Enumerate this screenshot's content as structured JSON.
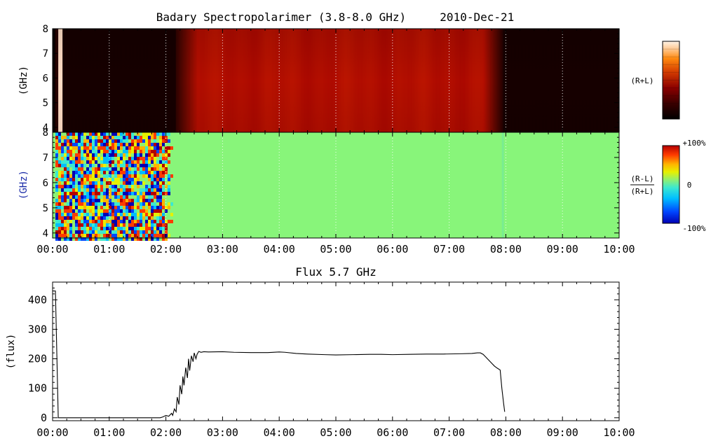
{
  "chart_data": [
    {
      "type": "heatmap",
      "title": "Badary Spectropolarimer (3.8-8.0 GHz)     2010-Dec-21",
      "ylabel": "(GHz)",
      "side_label": "(R+L)",
      "y_ticks": [
        "4",
        "5",
        "6",
        "7",
        "8"
      ],
      "ylim": [
        3.8,
        8.0
      ],
      "x_ticks": [
        "00:00",
        "01:00",
        "02:00",
        "03:00",
        "04:00",
        "05:00",
        "06:00",
        "07:00",
        "08:00",
        "09:00",
        "10:00"
      ],
      "xlim_hours": [
        0,
        10
      ],
      "colorbar": "black-red-orange-white, no labels",
      "segments": [
        {
          "t0": 0.0,
          "t1": 0.04,
          "level": "black"
        },
        {
          "t0": 0.04,
          "t1": 0.08,
          "level": "very-dark"
        },
        {
          "t0": 0.08,
          "t1": 0.17,
          "level": "pale/white"
        },
        {
          "t0": 0.17,
          "t1": 2.15,
          "level": "black"
        },
        {
          "t0": 2.15,
          "t1": 2.55,
          "level": "ramp to red"
        },
        {
          "t0": 2.55,
          "t1": 7.6,
          "level": "red"
        },
        {
          "t0": 7.6,
          "t1": 7.95,
          "level": "ramp to black"
        },
        {
          "t0": 7.95,
          "t1": 10.0,
          "level": "black"
        }
      ]
    },
    {
      "type": "heatmap",
      "ylabel": "(GHz)",
      "side_label_num": "(R-L)",
      "side_label_den": "(R+L)",
      "y_ticks": [
        "4",
        "5",
        "6",
        "7",
        "8"
      ],
      "ylim": [
        3.8,
        8.0
      ],
      "x_ticks": [
        "00:00",
        "01:00",
        "02:00",
        "03:00",
        "04:00",
        "05:00",
        "06:00",
        "07:00",
        "08:00",
        "09:00",
        "10:00"
      ],
      "xlim_hours": [
        0,
        10
      ],
      "colorbar_labels": [
        "+100%",
        "0",
        "-100%"
      ],
      "noise_interval_hours": [
        0.05,
        1.95
      ],
      "noise_fade_end_hours": 2.1,
      "background": "0% (green)"
    },
    {
      "type": "line",
      "title": "Flux 5.7 GHz",
      "ylabel": "(flux)",
      "y_ticks": [
        "0",
        "100",
        "200",
        "300",
        "400"
      ],
      "ylim": [
        -10,
        460
      ],
      "x_ticks": [
        "00:00",
        "01:00",
        "02:00",
        "03:00",
        "04:00",
        "05:00",
        "06:00",
        "07:00",
        "08:00",
        "09:00",
        "10:00"
      ],
      "xlim_hours": [
        0,
        10
      ],
      "series": [
        {
          "x_hours": [
            0.0,
            0.05,
            0.05,
            0.1,
            0.1,
            1.9,
            1.95,
            2.0,
            2.05,
            2.1,
            2.12,
            2.15,
            2.18,
            2.2,
            2.23,
            2.25,
            2.28,
            2.3,
            2.32,
            2.35,
            2.38,
            2.4,
            2.42,
            2.45,
            2.48,
            2.5,
            2.53,
            2.55,
            2.58,
            2.62,
            2.67,
            2.75,
            3.0,
            3.2,
            3.5,
            3.8,
            4.0,
            4.1,
            4.3,
            4.5,
            4.8,
            5.0,
            5.3,
            5.6,
            5.8,
            6.0,
            6.3,
            6.6,
            6.9,
            7.2,
            7.4,
            7.5,
            7.55,
            7.6,
            7.65,
            7.7,
            7.75,
            7.8,
            7.85,
            7.9,
            7.93,
            7.96,
            7.98
          ],
          "y": [
            430,
            430,
            430,
            0,
            0,
            0,
            3,
            8,
            5,
            15,
            8,
            30,
            20,
            70,
            45,
            110,
            80,
            140,
            110,
            170,
            135,
            200,
            160,
            210,
            190,
            220,
            200,
            215,
            225,
            222,
            224,
            223,
            224,
            222,
            221,
            221,
            223,
            222,
            218,
            216,
            214,
            213,
            214,
            215,
            215,
            214,
            215,
            216,
            216,
            217,
            218,
            220,
            220,
            215,
            205,
            195,
            185,
            175,
            168,
            162,
            100,
            50,
            20
          ]
        }
      ]
    }
  ]
}
